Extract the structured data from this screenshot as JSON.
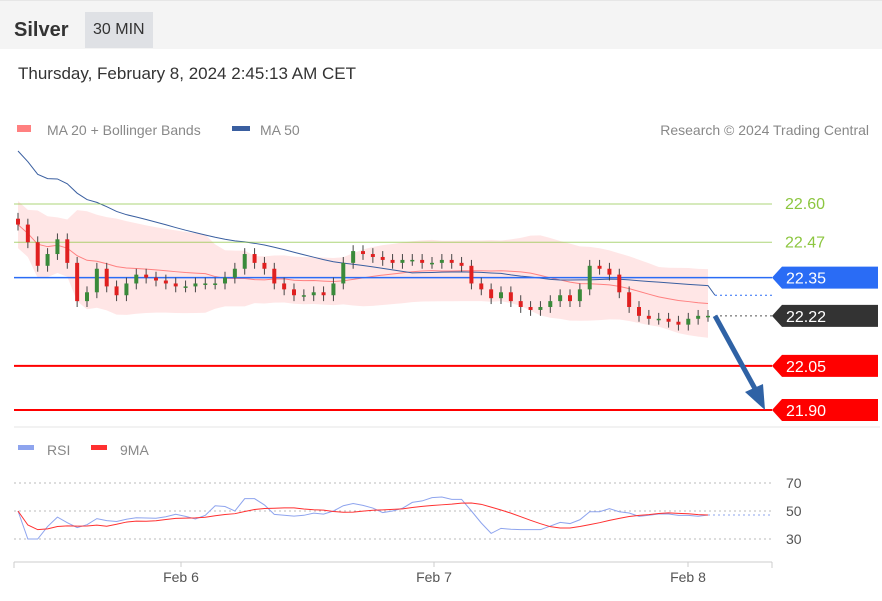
{
  "header": {
    "title": "Silver",
    "timeframe": "30 MIN"
  },
  "timestamp": "Thursday, February 8, 2024 2:45:13 AM CET",
  "legend": {
    "ma20": "MA 20 + Bollinger Bands",
    "ma50": "MA 50",
    "credit": "Research © 2024 Trading Central"
  },
  "rsi_legend": {
    "rsi": "RSI",
    "ma": "9MA"
  },
  "colors": {
    "ma20": "#ff8080",
    "ma50": "#3a5fa0",
    "bands": "#ffe0e0",
    "resistance": "#8cc63f",
    "pivot": "#2a6cf5",
    "current": "#333333",
    "support": "#ff0000",
    "arrow": "#2f62a5",
    "rsi": "#8ea4ee",
    "rsi_ma": "#ff3030",
    "up": "#3a8a3a",
    "down": "#e02020"
  },
  "chart_data": {
    "type": "candlestick",
    "x_ticks": [
      "Feb 6",
      "Feb 7",
      "Feb 8"
    ],
    "ylim": [
      21.85,
      22.85
    ],
    "levels": [
      {
        "value": "22.60",
        "kind": "resistance"
      },
      {
        "value": "22.47",
        "kind": "resistance"
      },
      {
        "value": "22.35",
        "kind": "pivot"
      },
      {
        "value": "22.22",
        "kind": "current"
      },
      {
        "value": "22.05",
        "kind": "support"
      },
      {
        "value": "21.90",
        "kind": "support"
      }
    ],
    "forecast_arrow": {
      "from": 22.22,
      "to": 21.9
    },
    "closes": [
      22.53,
      22.47,
      22.39,
      22.43,
      22.48,
      22.4,
      22.27,
      22.3,
      22.38,
      22.32,
      22.29,
      22.33,
      22.36,
      22.35,
      22.34,
      22.33,
      22.32,
      22.32,
      22.33,
      22.33,
      22.33,
      22.35,
      22.38,
      22.43,
      22.4,
      22.38,
      22.33,
      22.31,
      22.29,
      22.29,
      22.3,
      22.29,
      22.33,
      22.4,
      22.44,
      22.43,
      22.42,
      22.41,
      22.4,
      22.41,
      22.41,
      22.4,
      22.4,
      22.41,
      22.4,
      22.39,
      22.33,
      22.31,
      22.28,
      22.3,
      22.27,
      22.25,
      22.24,
      22.25,
      22.27,
      22.29,
      22.27,
      22.31,
      22.39,
      22.38,
      22.36,
      22.3,
      22.25,
      22.22,
      22.21,
      22.21,
      22.2,
      22.19,
      22.21,
      22.22,
      22.22
    ],
    "rsi_ticks": [
      "70",
      "50",
      "30"
    ],
    "rsi_ylim": [
      20,
      80
    ]
  }
}
